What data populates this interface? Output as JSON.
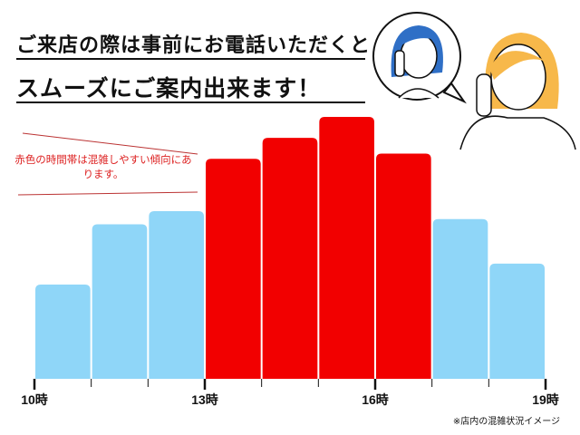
{
  "header": {
    "line1": "ご来店の際は事前にお電話いただくと",
    "line2": "スムーズにご案内出来ます！"
  },
  "note": "赤色の時間帯は混雑しやすい傾向にあります。",
  "caption": "※店内の混雑状況イメージ",
  "colors": {
    "busy": "#f20000",
    "normal": "#8fd6f8",
    "note": "#d22222"
  },
  "illustration": "two-women-on-phone",
  "chart_data": {
    "type": "bar",
    "title": "",
    "xlabel": "",
    "ylabel": "",
    "x_tick_labels": [
      "10時",
      "13時",
      "16時",
      "19時"
    ],
    "x_ticks": [
      10,
      13,
      16,
      19
    ],
    "xlim": [
      10,
      19
    ],
    "grid": false,
    "bars": [
      {
        "start": 10,
        "end": 11,
        "value": 36,
        "busy": false
      },
      {
        "start": 11,
        "end": 12,
        "value": 59,
        "busy": false
      },
      {
        "start": 12,
        "end": 13,
        "value": 64,
        "busy": false
      },
      {
        "start": 13,
        "end": 14,
        "value": 84,
        "busy": true
      },
      {
        "start": 14,
        "end": 15,
        "value": 92,
        "busy": true
      },
      {
        "start": 15,
        "end": 16,
        "value": 100,
        "busy": true
      },
      {
        "start": 16,
        "end": 17,
        "value": 86,
        "busy": true
      },
      {
        "start": 17,
        "end": 18,
        "value": 61,
        "busy": false
      },
      {
        "start": 18,
        "end": 19,
        "value": 44,
        "busy": false
      }
    ]
  }
}
